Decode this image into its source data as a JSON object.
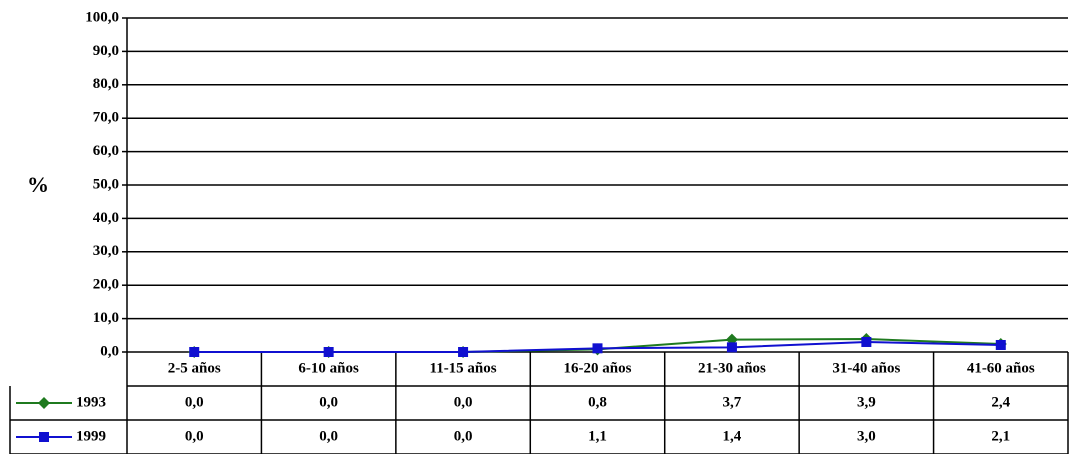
{
  "chart_data": {
    "type": "line",
    "y_label": "%",
    "categories": [
      "2-5 años",
      "6-10 años",
      "11-15 años",
      "16-20 años",
      "21-30 años",
      "31-40 años",
      "41-60 años"
    ],
    "series": [
      {
        "name": "1993",
        "color": "#1f7a1f",
        "marker": "diamond",
        "values": [
          0,
          0,
          0,
          0.8,
          3.7,
          3.9,
          2.4
        ],
        "value_labels": [
          "0,0",
          "0,0",
          "0,0",
          "0,8",
          "3,7",
          "3,9",
          "2,4"
        ]
      },
      {
        "name": "1999",
        "color": "#1010d0",
        "marker": "square",
        "values": [
          0,
          0,
          0,
          1.1,
          1.4,
          3.0,
          2.1
        ],
        "value_labels": [
          "0,0",
          "0,0",
          "0,0",
          "1,1",
          "1,4",
          "3,0",
          "2,1"
        ]
      }
    ],
    "ylim": [
      0,
      100
    ],
    "yticks": [
      {
        "value": 0,
        "label": "0,0"
      },
      {
        "value": 10,
        "label": "10,0"
      },
      {
        "value": 20,
        "label": "20,0"
      },
      {
        "value": 30,
        "label": "30,0"
      },
      {
        "value": 40,
        "label": "40,0"
      },
      {
        "value": 50,
        "label": "50,0"
      },
      {
        "value": 60,
        "label": "60,0"
      },
      {
        "value": 70,
        "label": "70,0"
      },
      {
        "value": 80,
        "label": "80,0"
      },
      {
        "value": 90,
        "label": "90,0"
      },
      {
        "value": 100,
        "label": "100,0"
      }
    ],
    "grid": true
  }
}
